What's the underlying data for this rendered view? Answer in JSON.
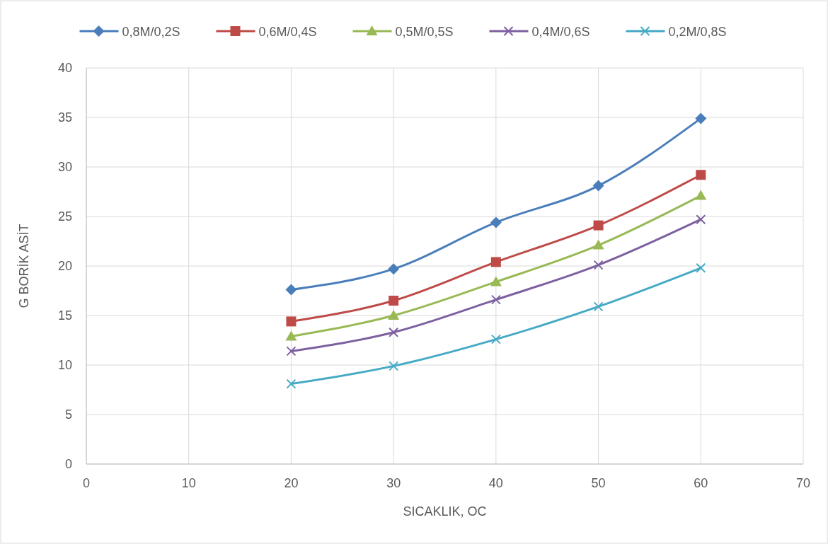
{
  "chart_data": {
    "type": "line",
    "xlabel": "SICAKLIK, OC",
    "ylabel": "G BORİK ASİT",
    "x": [
      20,
      30,
      40,
      50,
      60
    ],
    "xlim": [
      0,
      70
    ],
    "xticks": [
      0,
      10,
      20,
      30,
      40,
      50,
      60,
      70
    ],
    "ylim": [
      0,
      40
    ],
    "yticks": [
      0,
      5,
      10,
      15,
      20,
      25,
      30,
      35,
      40
    ],
    "grid": true,
    "legend": "top",
    "line_style": "solid",
    "series": [
      {
        "name": "0,8M/0,2S",
        "color": "#4a7ebb",
        "marker": "diamond",
        "values": [
          17.6,
          19.7,
          24.4,
          28.1,
          34.9
        ]
      },
      {
        "name": "0,6M/0,4S",
        "color": "#be4b48",
        "marker": "square",
        "values": [
          14.4,
          16.5,
          20.4,
          24.1,
          29.2
        ]
      },
      {
        "name": "0,5M/0,5S",
        "color": "#98b954",
        "marker": "triangle",
        "values": [
          12.9,
          15,
          18.4,
          22.1,
          27.1
        ]
      },
      {
        "name": "0,4M/0,6S",
        "color": "#7d60a0",
        "marker": "cross",
        "values": [
          11.4,
          13.3,
          16.6,
          20.1,
          24.7
        ]
      },
      {
        "name": "0,2M/0,8S",
        "color": "#46aac5",
        "marker": "cross",
        "values": [
          8.1,
          9.9,
          12.6,
          15.9,
          19.8
        ]
      }
    ]
  }
}
